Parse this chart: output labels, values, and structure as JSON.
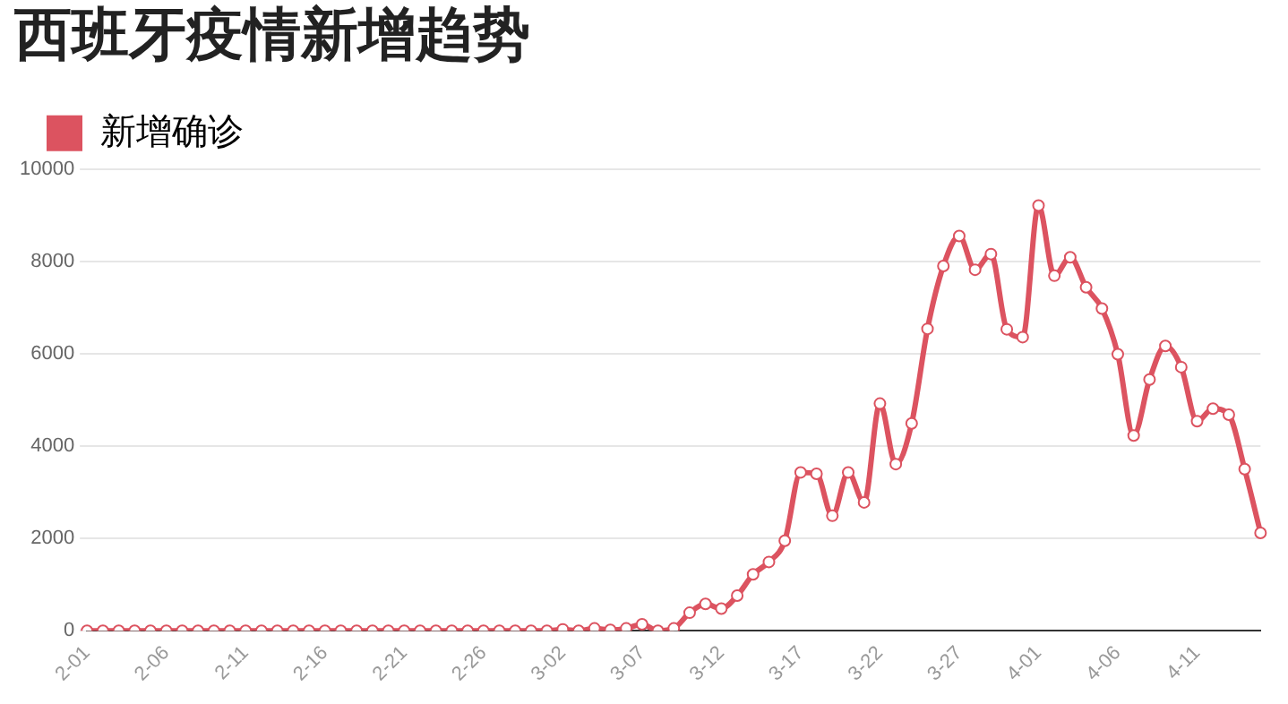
{
  "chart_data": {
    "type": "line",
    "title": "西班牙疫情新增趋势",
    "categories": [
      "2-01",
      null,
      null,
      null,
      null,
      "2-06",
      null,
      null,
      null,
      null,
      "2-11",
      null,
      null,
      null,
      null,
      "2-16",
      null,
      null,
      null,
      null,
      "2-21",
      null,
      null,
      null,
      null,
      "2-26",
      null,
      null,
      null,
      null,
      "3-02",
      null,
      null,
      null,
      null,
      "3-07",
      null,
      null,
      null,
      null,
      "3-12",
      null,
      null,
      null,
      null,
      "3-17",
      null,
      null,
      null,
      null,
      "3-22",
      null,
      null,
      null,
      null,
      "3-27",
      null,
      null,
      null,
      null,
      "4-01",
      null,
      null,
      null,
      null,
      "4-06",
      null,
      null,
      null,
      null,
      "4-11",
      null,
      null,
      null,
      null
    ],
    "series": [
      {
        "name": "新增确诊",
        "color": "#dc5360",
        "values": [
          0,
          0,
          0,
          0,
          0,
          0,
          0,
          0,
          0,
          0,
          0,
          0,
          0,
          0,
          0,
          0,
          0,
          0,
          0,
          0,
          0,
          0,
          0,
          0,
          0,
          0,
          0,
          0,
          0,
          0,
          30,
          0,
          50,
          20,
          50,
          140,
          0,
          50,
          390,
          580,
          480,
          760,
          1220,
          1490,
          1950,
          3430,
          3400,
          2490,
          3430,
          2780,
          4920,
          3610,
          4490,
          6540,
          7900,
          8550,
          7820,
          8160,
          6530,
          6360,
          9210,
          7690,
          8090,
          7440,
          6980,
          5990,
          4230,
          5440,
          6170,
          5710,
          4540,
          4810,
          4680,
          3500,
          2120
        ]
      }
    ],
    "ylim": [
      0,
      10000
    ],
    "yticks": [
      0,
      2000,
      4000,
      6000,
      8000,
      10000
    ],
    "grid": "y",
    "legend": "top left",
    "marker": "circle",
    "line_style": "solid"
  }
}
